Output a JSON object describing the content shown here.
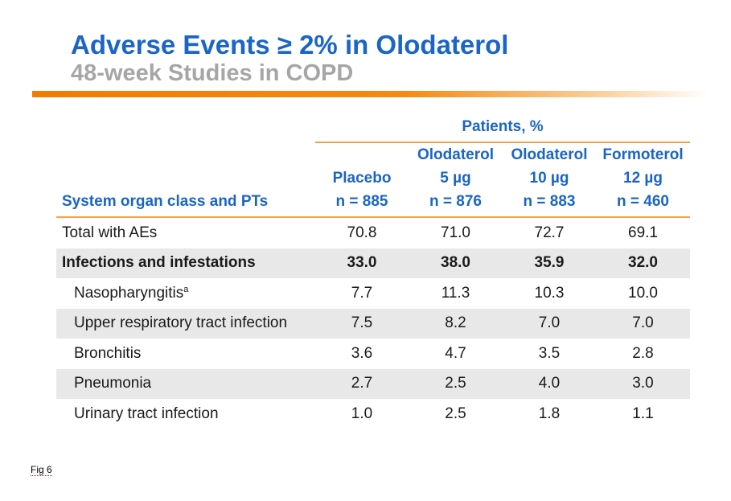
{
  "slide": {
    "title": "Adverse Events ≥ 2% in Olodaterol",
    "subtitle": "48-week Studies in COPD",
    "accent_color": "#f07c00",
    "title_color": "#1a65c6",
    "subtitle_color": "#a6a6a6"
  },
  "table": {
    "group_header": "Patients, %",
    "first_column_header": "System organ class and PTs",
    "columns": [
      {
        "line1": "",
        "line2": "Placebo",
        "line3": "n = 885"
      },
      {
        "line1": "Olodaterol",
        "line2": "5 µg",
        "line3": "n = 876"
      },
      {
        "line1": "Olodaterol",
        "line2": "10 µg",
        "line3": "n = 883"
      },
      {
        "line1": "Formoterol",
        "line2": "12 µg",
        "line3": "n = 460"
      }
    ],
    "rows": [
      {
        "label": "Total with AEs",
        "footnote": "",
        "values": [
          "70.8",
          "71.0",
          "72.7",
          "69.1"
        ]
      },
      {
        "label": "Infections and infestations",
        "footnote": "",
        "values": [
          "33.0",
          "38.0",
          "35.9",
          "32.0"
        ]
      },
      {
        "label": "Nasopharyngitis",
        "footnote": "a",
        "values": [
          "7.7",
          "11.3",
          "10.3",
          "10.0"
        ]
      },
      {
        "label": "Upper respiratory tract infection",
        "footnote": "",
        "values": [
          "7.5",
          "8.2",
          "7.0",
          "7.0"
        ]
      },
      {
        "label": "Bronchitis",
        "footnote": "",
        "values": [
          "3.6",
          "4.7",
          "3.5",
          "2.8"
        ]
      },
      {
        "label": "Pneumonia",
        "footnote": "",
        "values": [
          "2.7",
          "2.5",
          "4.0",
          "3.0"
        ]
      },
      {
        "label": "Urinary tract infection",
        "footnote": "",
        "values": [
          "1.0",
          "2.5",
          "1.8",
          "1.1"
        ]
      }
    ]
  },
  "figure_label": "Fig 6"
}
